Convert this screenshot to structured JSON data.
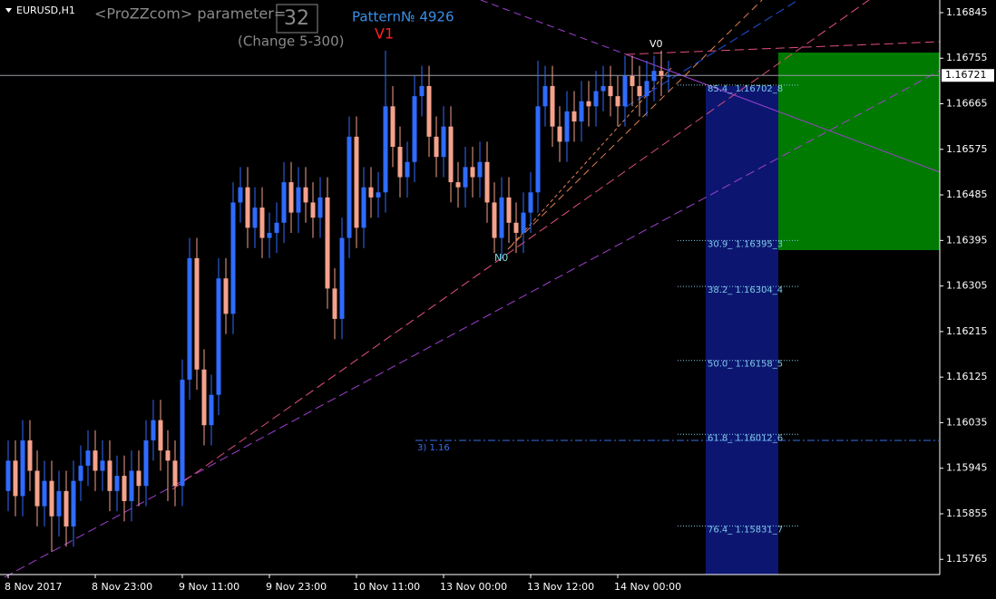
{
  "chart_data": {
    "type": "candlestick",
    "title": "EURUSD,H1",
    "labels": {
      "parameter": "<ProZZcom> parameter=",
      "parameter_value": "32",
      "range": "(Change 5-300)",
      "pattern": "Pattern№ 4926",
      "v1": "V1",
      "v0": "V0",
      "n0": "N0"
    },
    "x": [
      "8 Nov 2017",
      null,
      null,
      null,
      null,
      null,
      null,
      null,
      null,
      null,
      null,
      null,
      "8 Nov 23:00",
      null,
      null,
      null,
      null,
      null,
      null,
      null,
      null,
      null,
      null,
      null,
      "9 Nov 11:00",
      null,
      null,
      null,
      null,
      null,
      null,
      null,
      null,
      null,
      null,
      null,
      "9 Nov 23:00",
      null,
      null,
      null,
      null,
      null,
      null,
      null,
      null,
      null,
      null,
      null,
      "10 Nov 11:00",
      null,
      null,
      null,
      null,
      null,
      null,
      null,
      null,
      null,
      null,
      null,
      "13 Nov 00:00",
      null,
      null,
      null,
      null,
      null,
      null,
      null,
      null,
      null,
      null,
      null,
      "13 Nov 12:00",
      null,
      null,
      null,
      null,
      null,
      null,
      null,
      null,
      null,
      null,
      null,
      "14 Nov 00:00",
      null,
      null,
      null,
      null,
      null,
      null,
      null
    ],
    "open": [
      1.159,
      1.1596,
      1.1589,
      1.16,
      1.1594,
      1.1587,
      1.1592,
      1.1585,
      1.159,
      1.1583,
      1.1592,
      1.1595,
      1.1598,
      1.1594,
      1.1596,
      1.159,
      1.1593,
      1.1588,
      1.1594,
      1.1591,
      1.16,
      1.1604,
      1.1598,
      1.1596,
      1.1591,
      1.1612,
      1.1636,
      1.1614,
      1.1603,
      1.1609,
      1.1632,
      1.1625,
      1.1647,
      1.165,
      1.1642,
      1.1646,
      1.164,
      1.1641,
      1.1643,
      1.1651,
      1.1645,
      1.165,
      1.1647,
      1.1644,
      1.1648,
      1.163,
      1.1624,
      1.164,
      1.166,
      1.1642,
      1.165,
      1.1648,
      1.1649,
      1.1666,
      1.1658,
      1.1652,
      1.1655,
      1.1668,
      1.167,
      1.166,
      1.1656,
      1.1662,
      1.1651,
      1.165,
      1.1654,
      1.1652,
      1.1655,
      1.1647,
      1.164,
      1.1648,
      1.1643,
      1.1641,
      1.1645,
      1.1649,
      1.1666,
      1.167,
      1.1662,
      1.1659,
      1.1665,
      1.1663,
      1.1667,
      1.1666,
      1.1669,
      1.167,
      1.1668,
      1.1666,
      1.1672,
      1.167,
      1.1668,
      1.1671,
      1.1673,
      1.1672
    ],
    "high": [
      1.16,
      1.16,
      1.1604,
      1.1604,
      1.1598,
      1.1596,
      1.1596,
      1.1594,
      1.1594,
      1.1596,
      1.1599,
      1.1602,
      1.1602,
      1.16,
      1.16,
      1.1597,
      1.1597,
      1.1598,
      1.1598,
      1.1604,
      1.1608,
      1.1608,
      1.1602,
      1.16,
      1.1616,
      1.164,
      1.164,
      1.1618,
      1.1613,
      1.1636,
      1.1636,
      1.1651,
      1.1654,
      1.1654,
      1.165,
      1.165,
      1.1645,
      1.1647,
      1.1655,
      1.1655,
      1.1654,
      1.1654,
      1.1651,
      1.1652,
      1.1652,
      1.1634,
      1.1644,
      1.1664,
      1.1664,
      1.1654,
      1.1654,
      1.1653,
      1.1677,
      1.167,
      1.1662,
      1.1659,
      1.1672,
      1.1674,
      1.1674,
      1.1664,
      1.1666,
      1.1666,
      1.1655,
      1.1658,
      1.1658,
      1.1659,
      1.1659,
      1.1651,
      1.1652,
      1.1652,
      1.1647,
      1.1649,
      1.1653,
      1.1675,
      1.1674,
      1.1674,
      1.1666,
      1.1669,
      1.1669,
      1.1671,
      1.1671,
      1.1673,
      1.1674,
      1.1674,
      1.1672,
      1.1676,
      1.1676,
      1.1674,
      1.1675,
      1.1676,
      1.1677,
      1.1675
    ],
    "low": [
      1.1586,
      1.1585,
      1.1585,
      1.159,
      1.1583,
      1.1583,
      1.1578,
      1.1581,
      1.1579,
      1.1579,
      1.1588,
      1.1591,
      1.159,
      1.159,
      1.1586,
      1.1586,
      1.1584,
      1.1584,
      1.1587,
      1.1587,
      1.1596,
      1.1594,
      1.1588,
      1.1587,
      1.1587,
      1.1608,
      1.161,
      1.1599,
      1.1599,
      1.1605,
      1.1621,
      1.1621,
      1.1643,
      1.1638,
      1.1638,
      1.1636,
      1.1636,
      1.1637,
      1.1639,
      1.1641,
      1.1641,
      1.1643,
      1.164,
      1.164,
      1.1626,
      1.162,
      1.162,
      1.1636,
      1.1638,
      1.1638,
      1.1644,
      1.1644,
      1.1645,
      1.1654,
      1.1648,
      1.1648,
      1.1651,
      1.1664,
      1.1656,
      1.1652,
      1.1652,
      1.1647,
      1.1646,
      1.1646,
      1.1648,
      1.1648,
      1.1643,
      1.1637,
      1.1636,
      1.1639,
      1.1637,
      1.1637,
      1.1641,
      1.1645,
      1.1662,
      1.1658,
      1.1655,
      1.1655,
      1.1659,
      1.1659,
      1.1662,
      1.1662,
      1.1665,
      1.1664,
      1.1662,
      1.1662,
      1.1666,
      1.1664,
      1.1664,
      1.1667,
      1.1668,
      1.1669
    ],
    "close": [
      1.1596,
      1.1589,
      1.16,
      1.1594,
      1.1587,
      1.1592,
      1.1585,
      1.159,
      1.1583,
      1.1592,
      1.1595,
      1.1598,
      1.1594,
      1.1596,
      1.159,
      1.1593,
      1.1588,
      1.1594,
      1.1591,
      1.16,
      1.1604,
      1.1598,
      1.1596,
      1.1591,
      1.1612,
      1.1636,
      1.1614,
      1.1603,
      1.1609,
      1.1632,
      1.1625,
      1.1647,
      1.165,
      1.1642,
      1.1646,
      1.164,
      1.1641,
      1.1643,
      1.1651,
      1.1645,
      1.165,
      1.1647,
      1.1644,
      1.1648,
      1.163,
      1.1624,
      1.164,
      1.166,
      1.1642,
      1.165,
      1.1648,
      1.1649,
      1.1666,
      1.1658,
      1.1652,
      1.1655,
      1.1668,
      1.167,
      1.166,
      1.1656,
      1.1662,
      1.1651,
      1.165,
      1.1654,
      1.1652,
      1.1655,
      1.1647,
      1.164,
      1.1648,
      1.1643,
      1.1641,
      1.1645,
      1.1649,
      1.1666,
      1.167,
      1.1662,
      1.1659,
      1.1665,
      1.1663,
      1.1667,
      1.1666,
      1.1669,
      1.167,
      1.1668,
      1.1666,
      1.1672,
      1.167,
      1.1668,
      1.1671,
      1.1673,
      1.1672,
      1.1672
    ],
    "up_color": "#2f6bff",
    "down_color": "#f5a28c",
    "ylim": [
      1.15735,
      1.1687
    ],
    "yticks": [
      1.15765,
      1.15855,
      1.15945,
      1.16035,
      1.16125,
      1.16215,
      1.16305,
      1.16395,
      1.16485,
      1.16575,
      1.16665,
      1.16755,
      1.16845
    ],
    "current_price": 1.16721,
    "fib_levels": [
      {
        "label": "85.4_ 1.16702_8",
        "value": 1.16702
      },
      {
        "label": "30.9_ 1.16395_3",
        "value": 1.16395
      },
      {
        "label": "38.2_ 1.16304_4",
        "value": 1.16304
      },
      {
        "label": "50.0_ 1.16158_5",
        "value": 1.16158
      },
      {
        "label": "61.8_ 1.16012_6",
        "value": 1.16012
      },
      {
        "label": "76.4_ 1.15831_7",
        "value": 1.15831
      }
    ],
    "target_line": {
      "label": "3)  1.16",
      "value": 1.16
    }
  }
}
